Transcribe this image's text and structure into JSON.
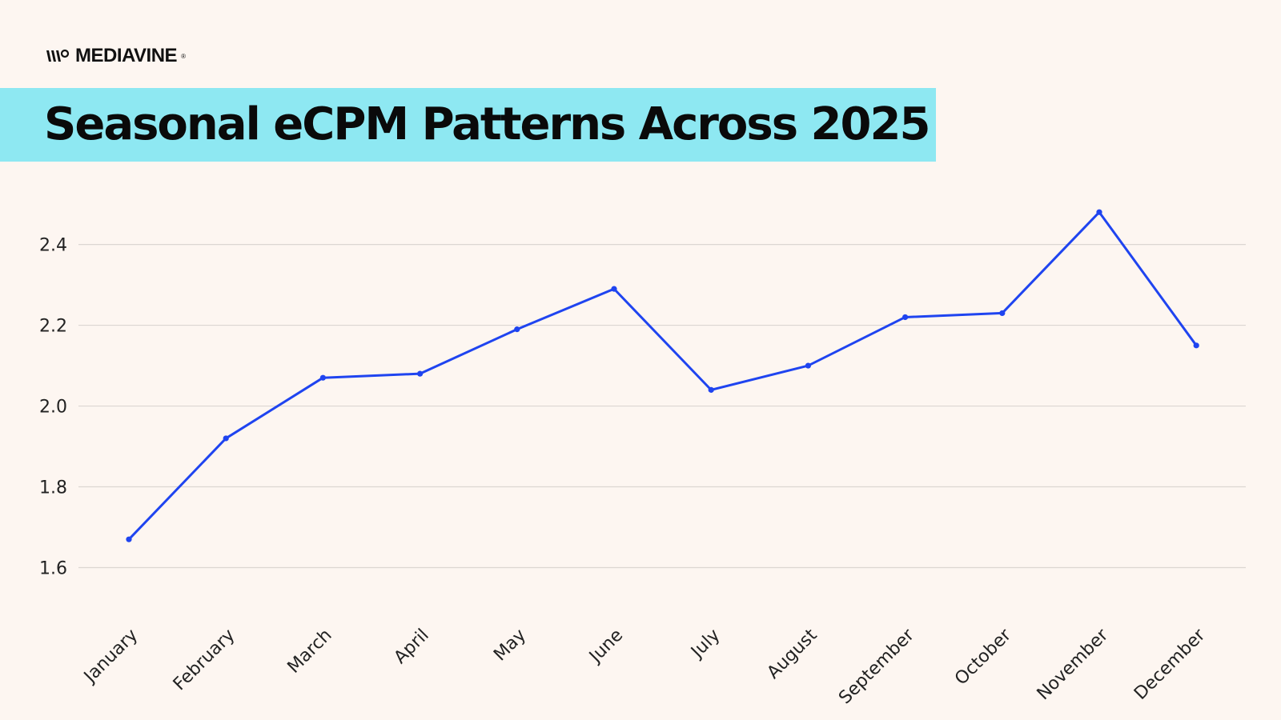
{
  "brand": {
    "name": "MEDIAVINE",
    "mark": "®",
    "logo_icon": "mediavine-logo-icon"
  },
  "colors": {
    "background": "#fdf6f1",
    "title_band": "#8ee8f2",
    "line": "#1f44f0",
    "grid": "#dcd6d2",
    "text": "#222222"
  },
  "chart_data": {
    "type": "line",
    "title": "Seasonal eCPM Patterns Across 2025",
    "xlabel": "",
    "ylabel": "",
    "categories": [
      "January",
      "February",
      "March",
      "April",
      "May",
      "June",
      "July",
      "August",
      "September",
      "October",
      "November",
      "December"
    ],
    "series": [
      {
        "values": [
          1.67,
          1.92,
          2.07,
          2.08,
          2.19,
          2.29,
          2.04,
          2.1,
          2.22,
          2.23,
          2.48,
          2.15
        ]
      }
    ],
    "y_ticks": [
      "1.6",
      "1.8",
      "2.0",
      "2.2",
      "2.4"
    ],
    "y_tick_values": [
      1.6,
      1.8,
      2.0,
      2.2,
      2.4
    ],
    "ylim": [
      1.5,
      2.52
    ],
    "grid": true,
    "grid_axis": "y",
    "legend": "none"
  }
}
